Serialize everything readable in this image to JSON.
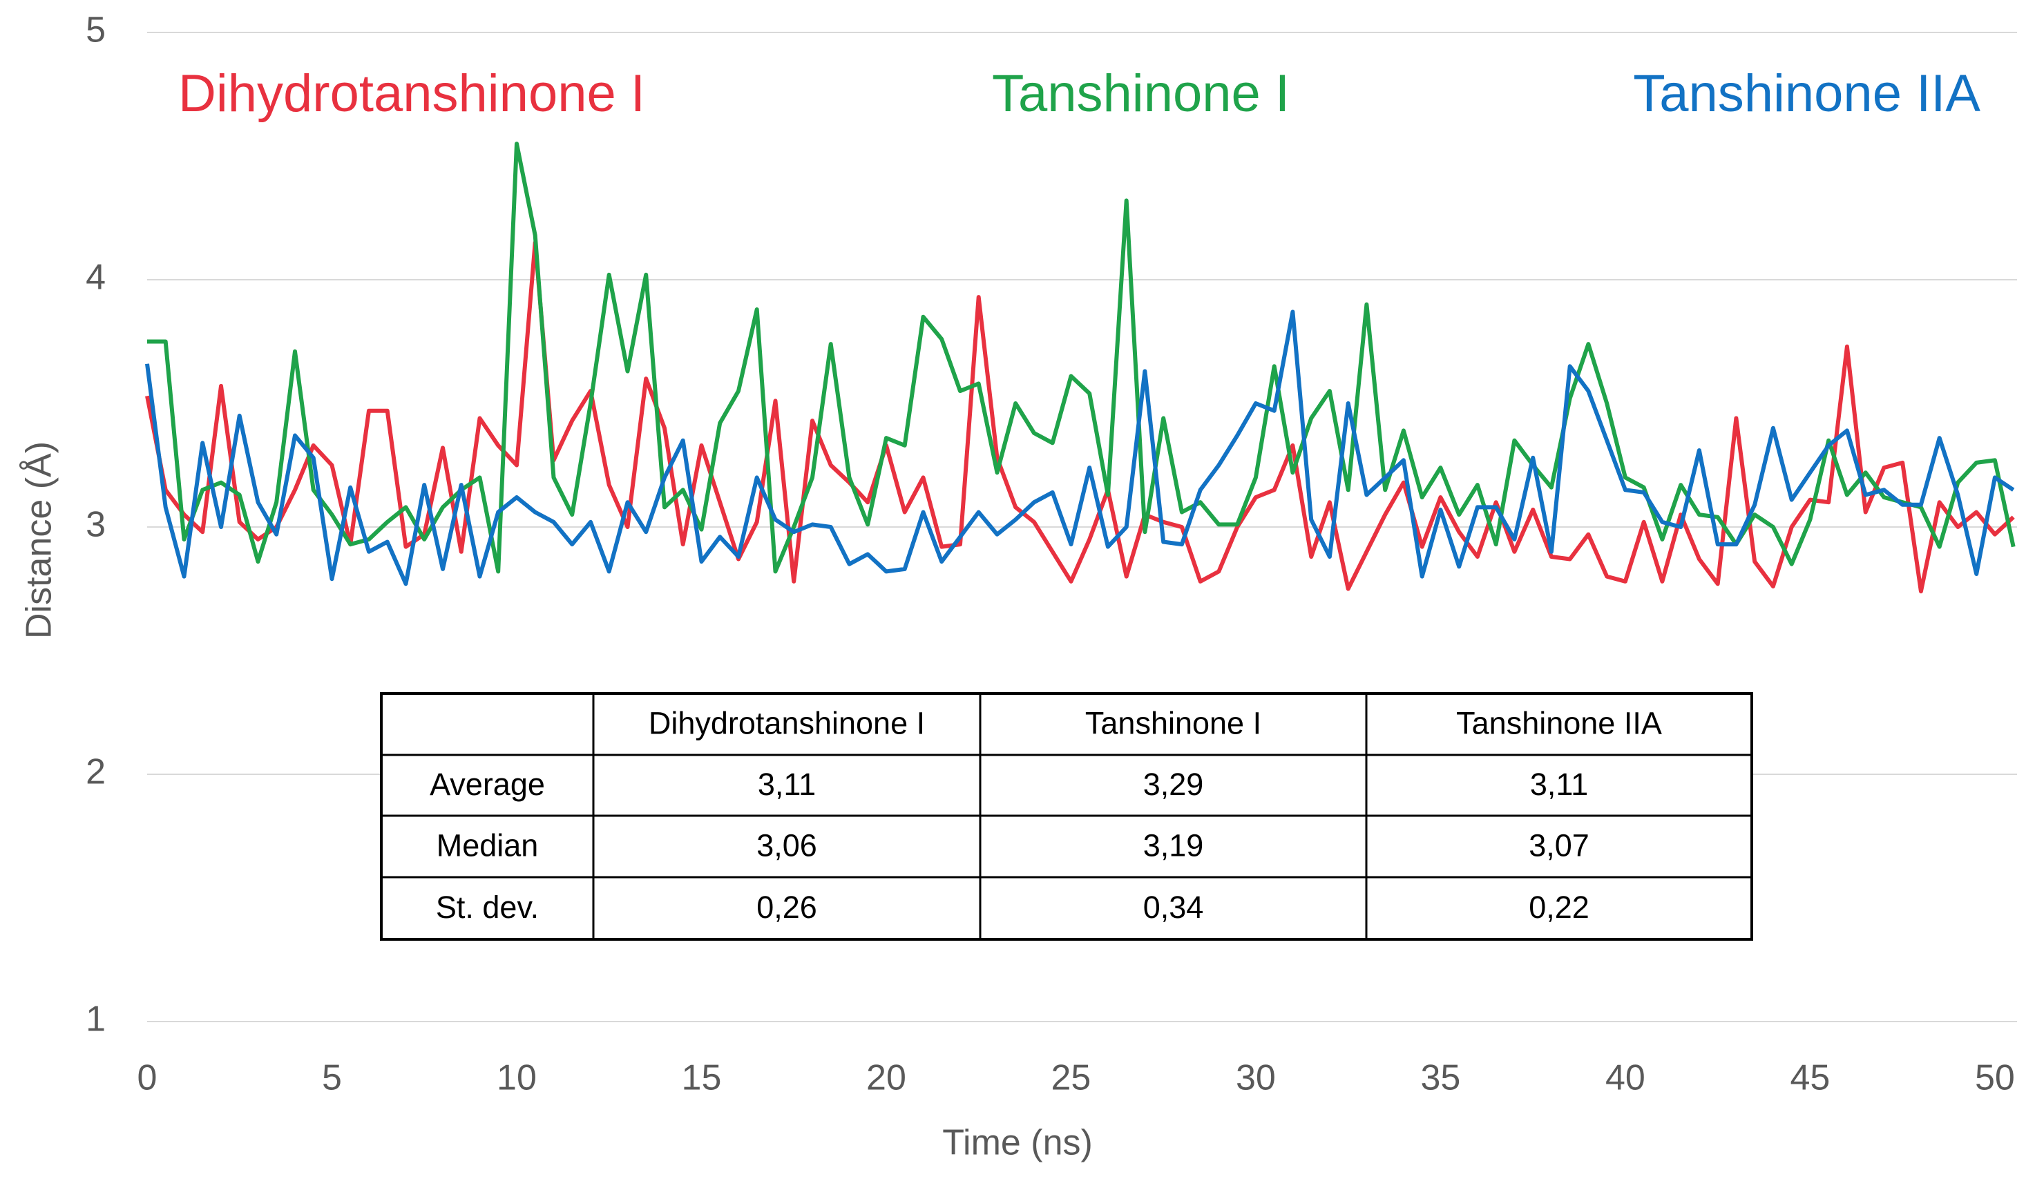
{
  "chart_data": {
    "type": "line",
    "xlabel": "Time (ns)",
    "ylabel": "Distance (Å)",
    "x": [
      0,
      0.5,
      1,
      1.5,
      2,
      2.5,
      3,
      3.5,
      4,
      4.5,
      5,
      5.5,
      6,
      6.5,
      7,
      7.5,
      8,
      8.5,
      9,
      9.5,
      10,
      10.5,
      11,
      11.5,
      12,
      12.5,
      13,
      13.5,
      14,
      14.5,
      15,
      15.5,
      16,
      16.5,
      17,
      17.5,
      18,
      18.5,
      19,
      19.5,
      20,
      20.5,
      21,
      21.5,
      22,
      22.5,
      23,
      23.5,
      24,
      24.5,
      25,
      25.5,
      26,
      26.5,
      27,
      27.5,
      28,
      28.5,
      29,
      29.5,
      30,
      30.5,
      31,
      31.5,
      32,
      32.5,
      33,
      33.5,
      34,
      34.5,
      35,
      35.5,
      36,
      36.5,
      37,
      37.5,
      38,
      38.5,
      39,
      39.5,
      40,
      40.5,
      41,
      41.5,
      42,
      42.5,
      43,
      43.5,
      44,
      44.5,
      45,
      45.5,
      46,
      46.5,
      47,
      47.5,
      48,
      48.5,
      49,
      49.5,
      50,
      50.5
    ],
    "series": [
      {
        "name": "Dihydrotanshinone I",
        "color": "#e8313f",
        "values": [
          3.53,
          3.15,
          3.05,
          2.98,
          3.57,
          3.02,
          2.95,
          3.0,
          3.15,
          3.33,
          3.25,
          2.93,
          3.47,
          3.47,
          2.92,
          2.97,
          3.32,
          2.9,
          3.44,
          3.33,
          3.25,
          4.15,
          3.27,
          3.43,
          3.55,
          3.17,
          3.0,
          3.6,
          3.4,
          2.93,
          3.33,
          3.1,
          2.87,
          3.02,
          3.51,
          2.78,
          3.43,
          3.25,
          3.18,
          3.1,
          3.33,
          3.06,
          3.2,
          2.92,
          2.93,
          3.93,
          3.28,
          3.08,
          3.02,
          2.9,
          2.78,
          2.95,
          3.15,
          2.8,
          3.05,
          3.02,
          3.0,
          2.78,
          2.82,
          3.0,
          3.12,
          3.15,
          3.33,
          2.88,
          3.1,
          2.75,
          2.9,
          3.05,
          3.18,
          2.92,
          3.12,
          2.98,
          2.88,
          3.1,
          2.9,
          3.07,
          2.88,
          2.87,
          2.97,
          2.8,
          2.78,
          3.02,
          2.78,
          3.05,
          2.87,
          2.77,
          3.44,
          2.86,
          2.76,
          3.0,
          3.11,
          3.1,
          3.73,
          3.06,
          3.24,
          3.26,
          2.74,
          3.1,
          3.0,
          3.06,
          2.97,
          3.04
        ]
      },
      {
        "name": "Tanshinone I",
        "color": "#1fa34a",
        "values": [
          3.75,
          3.75,
          2.95,
          3.15,
          3.18,
          3.13,
          2.86,
          3.1,
          3.71,
          3.15,
          3.05,
          2.93,
          2.95,
          3.02,
          3.08,
          2.95,
          3.08,
          3.15,
          3.2,
          2.82,
          4.55,
          4.18,
          3.2,
          3.05,
          3.5,
          4.02,
          3.63,
          4.02,
          3.08,
          3.15,
          2.99,
          3.42,
          3.55,
          3.88,
          2.82,
          3.0,
          3.2,
          3.74,
          3.2,
          3.01,
          3.36,
          3.33,
          3.85,
          3.76,
          3.55,
          3.58,
          3.22,
          3.5,
          3.38,
          3.34,
          3.61,
          3.54,
          3.13,
          4.32,
          2.98,
          3.44,
          3.06,
          3.1,
          3.01,
          3.01,
          3.2,
          3.65,
          3.22,
          3.44,
          3.55,
          3.15,
          3.9,
          3.15,
          3.39,
          3.12,
          3.24,
          3.05,
          3.17,
          2.93,
          3.35,
          3.25,
          3.16,
          3.52,
          3.74,
          3.5,
          3.2,
          3.16,
          2.95,
          3.17,
          3.05,
          3.04,
          2.93,
          3.05,
          3.0,
          2.85,
          3.03,
          3.35,
          3.13,
          3.22,
          3.12,
          3.1,
          3.08,
          2.92,
          3.18,
          3.26,
          3.27,
          2.92
        ]
      },
      {
        "name": "Tanshinone IIA",
        "color": "#1272c4",
        "values": [
          3.66,
          3.08,
          2.8,
          3.34,
          3.0,
          3.45,
          3.1,
          2.97,
          3.37,
          3.28,
          2.79,
          3.16,
          2.9,
          2.94,
          2.77,
          3.17,
          2.83,
          3.17,
          2.8,
          3.06,
          3.12,
          3.06,
          3.02,
          2.93,
          3.02,
          2.82,
          3.1,
          2.98,
          3.2,
          3.35,
          2.86,
          2.96,
          2.88,
          3.2,
          3.03,
          2.98,
          3.01,
          3.0,
          2.85,
          2.89,
          2.82,
          2.83,
          3.06,
          2.86,
          2.96,
          3.06,
          2.97,
          3.03,
          3.1,
          3.14,
          2.93,
          3.24,
          2.92,
          3.0,
          3.63,
          2.94,
          2.93,
          3.15,
          3.25,
          3.37,
          3.5,
          3.47,
          3.87,
          3.03,
          2.88,
          3.5,
          3.13,
          3.2,
          3.27,
          2.8,
          3.07,
          2.84,
          3.08,
          3.08,
          2.95,
          3.28,
          2.9,
          3.65,
          3.55,
          3.35,
          3.15,
          3.14,
          3.02,
          3.0,
          3.31,
          2.93,
          2.93,
          3.09,
          3.4,
          3.11,
          3.22,
          3.33,
          3.39,
          3.13,
          3.15,
          3.09,
          3.09,
          3.36,
          3.13,
          2.81,
          3.2,
          3.15
        ]
      }
    ],
    "xlim": [
      0,
      50.6
    ],
    "xticks": [
      0,
      5,
      10,
      15,
      20,
      25,
      30,
      35,
      40,
      45,
      50
    ],
    "ylim": [
      1,
      5
    ],
    "yticks": [
      1,
      2,
      3,
      4,
      5
    ],
    "grid": true
  },
  "table": {
    "columns": [
      "Dihydrotanshinone I",
      "Tanshinone I",
      "Tanshinone IIA"
    ],
    "rows": [
      [
        "Average",
        "3,11",
        "3,29",
        "3,11"
      ],
      [
        "Median",
        "3,06",
        "3,19",
        "3,07"
      ],
      [
        "St. dev.",
        "0,26",
        "0,34",
        "0,22"
      ]
    ]
  }
}
